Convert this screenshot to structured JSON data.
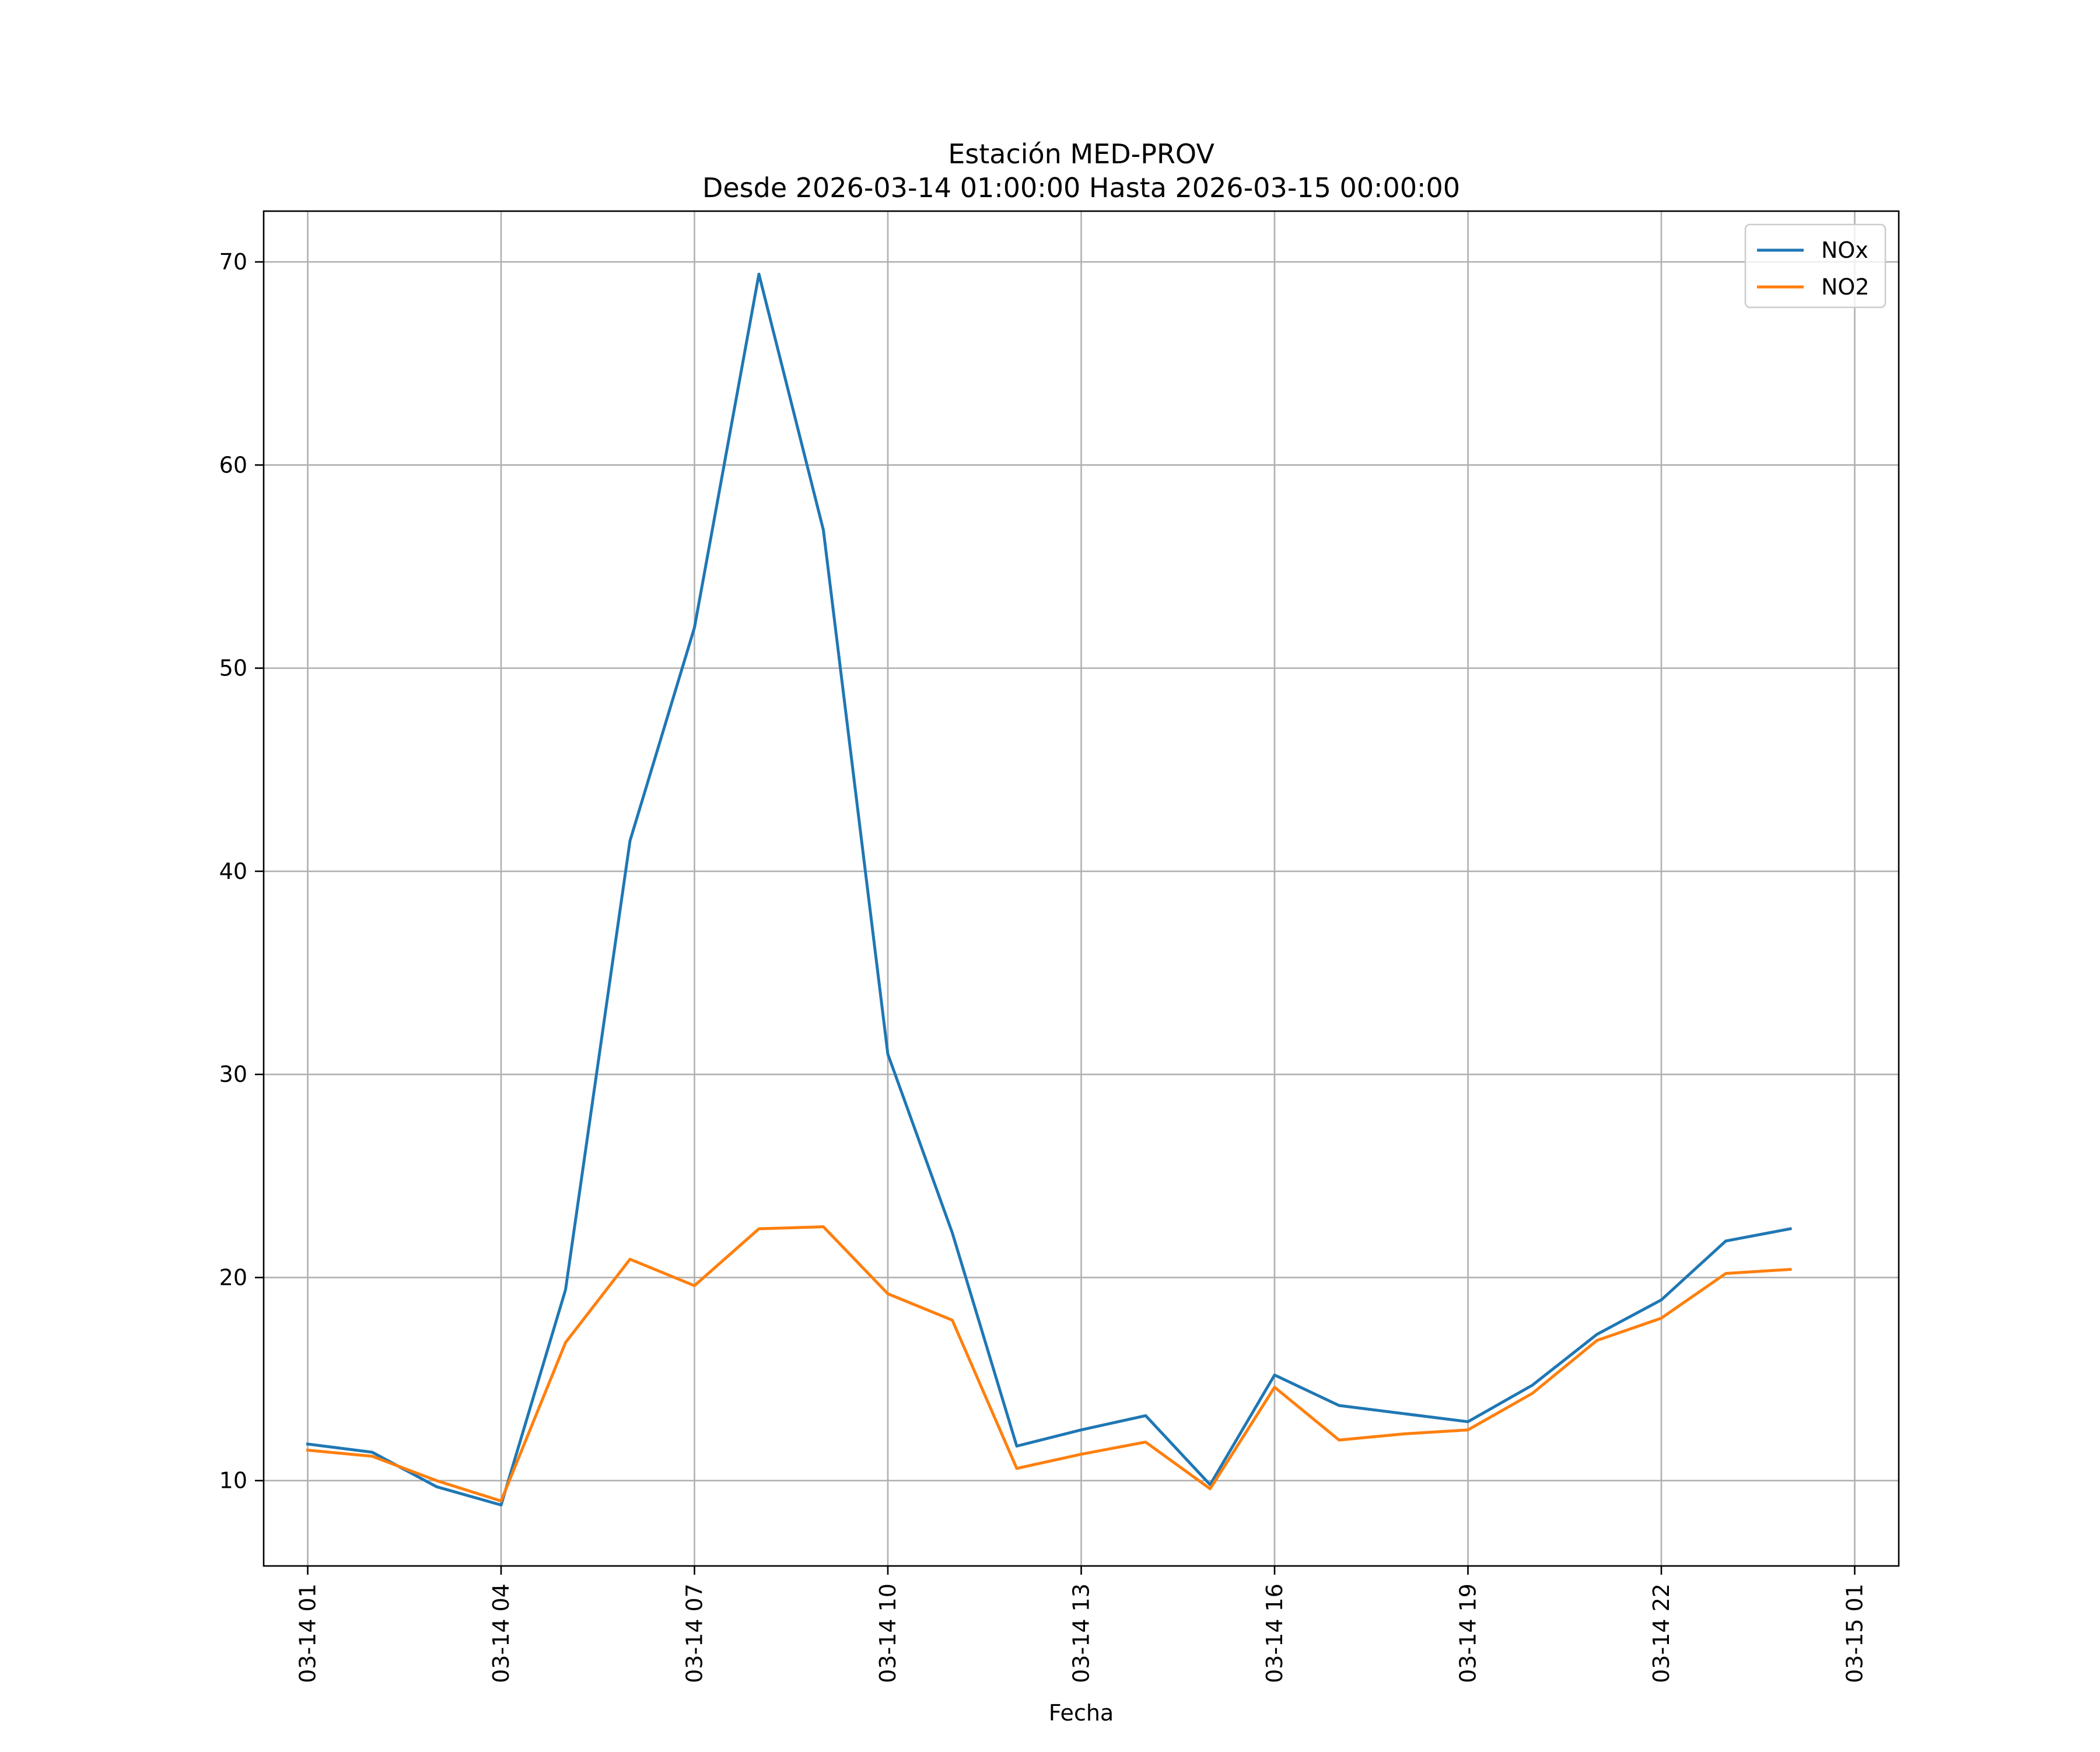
{
  "chart_data": {
    "type": "line",
    "title": "Estación MED-PROV",
    "subtitle": "Desde 2026-03-14 01:00:00 Hasta 2026-03-15 00:00:00",
    "xlabel": "Fecha",
    "ylabel": "",
    "x": [
      "2026-03-14 01:00",
      "2026-03-14 02:00",
      "2026-03-14 03:00",
      "2026-03-14 04:00",
      "2026-03-14 05:00",
      "2026-03-14 06:00",
      "2026-03-14 07:00",
      "2026-03-14 08:00",
      "2026-03-14 09:00",
      "2026-03-14 10:00",
      "2026-03-14 11:00",
      "2026-03-14 12:00",
      "2026-03-14 13:00",
      "2026-03-14 14:00",
      "2026-03-14 15:00",
      "2026-03-14 16:00",
      "2026-03-14 17:00",
      "2026-03-14 18:00",
      "2026-03-14 19:00",
      "2026-03-14 20:00",
      "2026-03-14 21:00",
      "2026-03-14 22:00",
      "2026-03-14 23:00",
      "2026-03-15 00:00"
    ],
    "series": [
      {
        "name": "NOx",
        "color": "#1f77b4",
        "values": [
          11.8,
          11.4,
          9.7,
          8.8,
          19.4,
          41.5,
          52.0,
          69.4,
          56.8,
          31.0,
          22.2,
          11.7,
          12.5,
          13.2,
          9.8,
          15.2,
          13.7,
          13.3,
          12.9,
          14.7,
          17.2,
          18.9,
          21.8,
          22.4
        ]
      },
      {
        "name": "NO2",
        "color": "#ff7f0e",
        "values": [
          11.5,
          11.2,
          10.0,
          9.0,
          16.8,
          20.9,
          19.6,
          22.4,
          22.5,
          19.2,
          17.9,
          10.6,
          11.3,
          11.9,
          9.6,
          14.6,
          12.0,
          12.3,
          12.5,
          14.3,
          16.9,
          18.0,
          20.2,
          20.4
        ]
      }
    ],
    "xlim": [
      "2026-03-14 00:19",
      "2026-03-15 01:41"
    ],
    "ylim": [
      5.8,
      72.5
    ],
    "xticks": [
      {
        "value": "2026-03-14 01:00",
        "label": "03-14 01"
      },
      {
        "value": "2026-03-14 04:00",
        "label": "03-14 04"
      },
      {
        "value": "2026-03-14 07:00",
        "label": "03-14 07"
      },
      {
        "value": "2026-03-14 10:00",
        "label": "03-14 10"
      },
      {
        "value": "2026-03-14 13:00",
        "label": "03-14 13"
      },
      {
        "value": "2026-03-14 16:00",
        "label": "03-14 16"
      },
      {
        "value": "2026-03-14 19:00",
        "label": "03-14 19"
      },
      {
        "value": "2026-03-14 22:00",
        "label": "03-14 22"
      },
      {
        "value": "2026-03-15 01:00",
        "label": "03-15 01"
      }
    ],
    "yticks": [
      10,
      20,
      30,
      40,
      50,
      60,
      70
    ],
    "grid": true,
    "legend": "top-right"
  }
}
